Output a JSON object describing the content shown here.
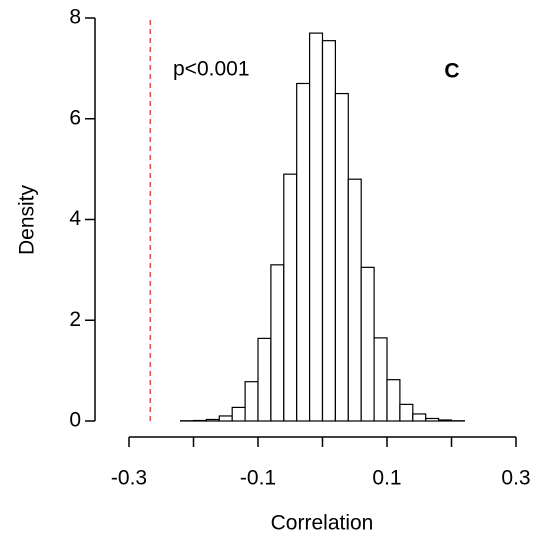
{
  "chart_data": {
    "type": "histogram",
    "xlabel": "Correlation",
    "ylabel": "Density",
    "annotation": "p<0.001",
    "panel_label": "C",
    "bins": [
      -0.22,
      -0.2,
      -0.18,
      -0.16,
      -0.14,
      -0.12,
      -0.1,
      -0.08,
      -0.06,
      -0.04,
      -0.02,
      0,
      0.02,
      0.04,
      0.06,
      0.08,
      0.1,
      0.12,
      0.14,
      0.16,
      0.18,
      0.2,
      0.22
    ],
    "values": [
      0.005,
      0.01,
      0.03,
      0.1,
      0.27,
      0.78,
      1.64,
      3.1,
      4.9,
      6.7,
      7.7,
      7.55,
      6.5,
      4.8,
      3.05,
      1.65,
      0.82,
      0.33,
      0.14,
      0.05,
      0.02,
      0.005
    ],
    "color": "#ffffff",
    "edge_color": "#000000",
    "xlim": [
      -0.3,
      0.3
    ],
    "xticks": [
      -0.3,
      -0.1,
      0.1,
      0.3
    ],
    "x_minor_ticks": [
      -0.2,
      0,
      0.2
    ],
    "ylim": [
      0,
      8
    ],
    "yticks": [
      0,
      2,
      4,
      6,
      8
    ],
    "vline": {
      "x": -0.267,
      "color": "#e05050",
      "dashed": true
    }
  }
}
